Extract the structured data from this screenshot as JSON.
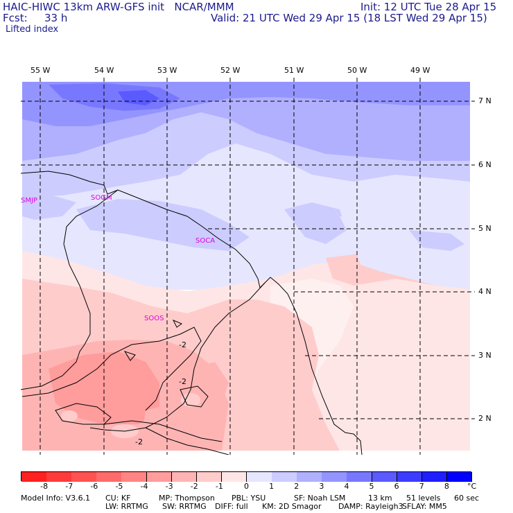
{
  "header": {
    "line1_left": "HAIC-HIWC 13km ARW-GFS init   NCAR/MMM",
    "line1_right": "Init: 12 UTC Tue 28 Apr 15",
    "fcst_label": "Fcst:",
    "fcst_value": "33 h",
    "valid": "Valid: 21 UTC Wed 29 Apr 15 (18 LST Wed 29 Apr 15)",
    "field": "Lifted index"
  },
  "map": {
    "lon_labels": [
      "55 W",
      "54 W",
      "53 W",
      "52 W",
      "51 W",
      "50 W",
      "49 W"
    ],
    "lat_labels": [
      "7 N",
      "6 N",
      "5 N",
      "4 N",
      "3 N",
      "2 N"
    ],
    "stations": [
      "SMJP",
      "SOGM",
      "SOCA",
      "SOOS"
    ],
    "contour_labels": [
      "-2",
      "-2",
      "-2"
    ]
  },
  "colorbar": {
    "labels": [
      "-8",
      "-7",
      "-6",
      "-5",
      "-4",
      "-3",
      "-2",
      "-1",
      "0",
      "1",
      "2",
      "3",
      "4",
      "5",
      "6",
      "7",
      "8"
    ],
    "unit": "°C",
    "colors": [
      "#ff2020",
      "#ff3a3a",
      "#ff5252",
      "#ff6a6a",
      "#ff8484",
      "#ff9c9c",
      "#ffb4b4",
      "#ffcccc",
      "#ffe6e6",
      "#e6e6ff",
      "#ccccff",
      "#b0b0ff",
      "#9494ff",
      "#7878ff",
      "#5a5aff",
      "#3c3cff",
      "#1e1eff",
      "#0000ff"
    ]
  },
  "footer": {
    "model_info": "Model Info: V3.6.1",
    "cu": "CU: KF",
    "mp": "MP: Thompson",
    "pbl": "PBL: YSU",
    "sf": "SF: Noah LSM",
    "res": "13 km",
    "levels": "51 levels",
    "dt": "60 sec",
    "lw": "LW: RRTMG",
    "sw": "SW: RRTMG",
    "diff": "DIFF: full",
    "km": "KM: 2D Smagor",
    "damp": "DAMP: Rayleigh3",
    "sflay": "SFLAY: MM5"
  }
}
